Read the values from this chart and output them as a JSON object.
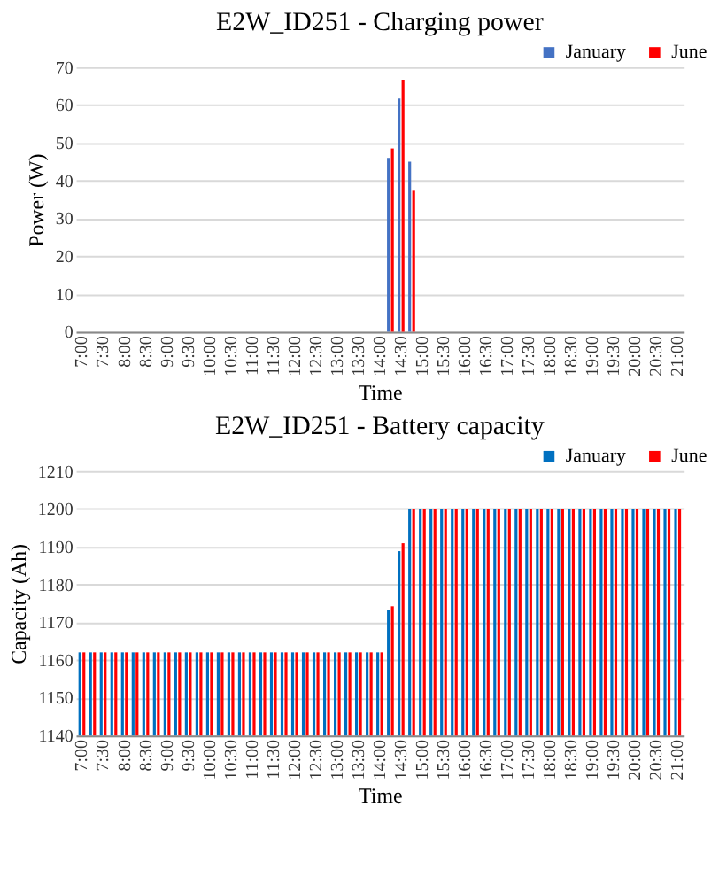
{
  "chart_data": [
    {
      "type": "bar",
      "title": "E2W_ID251 - Charging power",
      "xlabel": "Time",
      "ylabel": "Power (W)",
      "categories": [
        "7:00",
        null,
        "7:30",
        null,
        "8:00",
        null,
        "8:30",
        null,
        "9:00",
        null,
        "9:30",
        null,
        "10:00",
        null,
        "10:30",
        null,
        "11:00",
        null,
        "11:30",
        null,
        "12:00",
        null,
        "12:30",
        null,
        "13:00",
        null,
        "13:30",
        null,
        "14:00",
        null,
        "14:30",
        null,
        "15:00",
        null,
        "15:30",
        null,
        "16:00",
        null,
        "16:30",
        null,
        "17:00",
        null,
        "17:30",
        null,
        "18:00",
        null,
        "18:30",
        null,
        "19:00",
        null,
        "19:30",
        null,
        "20:00",
        null,
        "20:30",
        null,
        "21:00"
      ],
      "series": [
        {
          "name": "January",
          "color": "#4472c4",
          "values": [
            0,
            0,
            0,
            0,
            0,
            0,
            0,
            0,
            0,
            0,
            0,
            0,
            0,
            0,
            0,
            0,
            0,
            0,
            0,
            0,
            0,
            0,
            0,
            0,
            0,
            0,
            0,
            0,
            0,
            46,
            61.7,
            45,
            0,
            0,
            0,
            0,
            0,
            0,
            0,
            0,
            0,
            0,
            0,
            0,
            0,
            0,
            0,
            0,
            0,
            0,
            0,
            0,
            0,
            0,
            0,
            0,
            0
          ]
        },
        {
          "name": "June",
          "color": "#ff0000",
          "values": [
            0,
            0,
            0,
            0,
            0,
            0,
            0,
            0,
            0,
            0,
            0,
            0,
            0,
            0,
            0,
            0,
            0,
            0,
            0,
            0,
            0,
            0,
            0,
            0,
            0,
            0,
            0,
            0,
            0,
            48.5,
            66.7,
            37.3,
            0,
            0,
            0,
            0,
            0,
            0,
            0,
            0,
            0,
            0,
            0,
            0,
            0,
            0,
            0,
            0,
            0,
            0,
            0,
            0,
            0,
            0,
            0,
            0,
            0
          ]
        }
      ],
      "ylim": [
        0,
        70
      ],
      "yticks": [
        0,
        10,
        20,
        30,
        40,
        50,
        60,
        70
      ],
      "grid": "y",
      "legend": "top right"
    },
    {
      "type": "bar",
      "title": "E2W_ID251 - Battery capacity",
      "xlabel": "Time",
      "ylabel": "Capacity (Ah)",
      "categories": [
        "7:00",
        null,
        "7:30",
        null,
        "8:00",
        null,
        "8:30",
        null,
        "9:00",
        null,
        "9:30",
        null,
        "10:00",
        null,
        "10:30",
        null,
        "11:00",
        null,
        "11:30",
        null,
        "12:00",
        null,
        "12:30",
        null,
        "13:00",
        null,
        "13:30",
        null,
        "14:00",
        null,
        "14:30",
        null,
        "15:00",
        null,
        "15:30",
        null,
        "16:00",
        null,
        "16:30",
        null,
        "17:00",
        null,
        "17:30",
        null,
        "18:00",
        null,
        "18:30",
        null,
        "19:00",
        null,
        "19:30",
        null,
        "20:00",
        null,
        "20:30",
        null,
        "21:00"
      ],
      "series": [
        {
          "name": "January",
          "color": "#0070c0",
          "values": [
            1162,
            1162,
            1162,
            1162,
            1162,
            1162,
            1162,
            1162,
            1162,
            1162,
            1162,
            1162,
            1162,
            1162,
            1162,
            1162,
            1162,
            1162,
            1162,
            1162,
            1162,
            1162,
            1162,
            1162,
            1162,
            1162,
            1162,
            1162,
            1162,
            1173.3,
            1188.8,
            1200,
            1200,
            1200,
            1200,
            1200,
            1200,
            1200,
            1200,
            1200,
            1200,
            1200,
            1200,
            1200,
            1200,
            1200,
            1200,
            1200,
            1200,
            1200,
            1200,
            1200,
            1200,
            1200,
            1200,
            1200,
            1200
          ]
        },
        {
          "name": "June",
          "color": "#ff0000",
          "values": [
            1162,
            1162,
            1162,
            1162,
            1162,
            1162,
            1162,
            1162,
            1162,
            1162,
            1162,
            1162,
            1162,
            1162,
            1162,
            1162,
            1162,
            1162,
            1162,
            1162,
            1162,
            1162,
            1162,
            1162,
            1162,
            1162,
            1162,
            1162,
            1162,
            1174.2,
            1190.9,
            1200,
            1200,
            1200,
            1200,
            1200,
            1200,
            1200,
            1200,
            1200,
            1200,
            1200,
            1200,
            1200,
            1200,
            1200,
            1200,
            1200,
            1200,
            1200,
            1200,
            1200,
            1200,
            1200,
            1200,
            1200,
            1200
          ]
        }
      ],
      "ylim": [
        1140,
        1210
      ],
      "yticks": [
        1140,
        1150,
        1160,
        1170,
        1180,
        1190,
        1200,
        1210
      ],
      "grid": "y",
      "legend": "top right"
    }
  ]
}
